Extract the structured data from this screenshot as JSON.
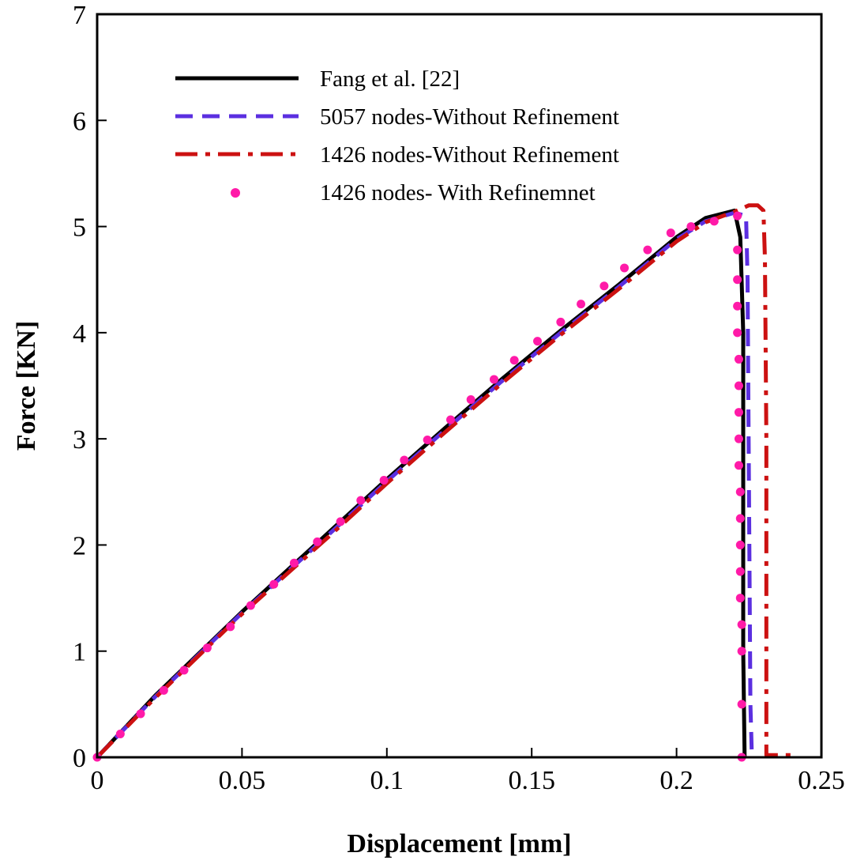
{
  "chart_data": {
    "type": "line",
    "title": "",
    "xlabel": "Displacement [mm]",
    "ylabel": "Force [KN]",
    "xlim": [
      0,
      0.25
    ],
    "ylim": [
      0,
      7
    ],
    "xticks": [
      0,
      0.05,
      0.1,
      0.15,
      0.2,
      0.25
    ],
    "xtick_labels": [
      "0",
      "0.05",
      "0.1",
      "0.15",
      "0.2",
      "0.25"
    ],
    "yticks": [
      0,
      1,
      2,
      3,
      4,
      5,
      6,
      7
    ],
    "ytick_labels": [
      "0",
      "1",
      "2",
      "3",
      "4",
      "5",
      "6",
      "7"
    ],
    "grid": false,
    "legend_position": "top-left",
    "series": [
      {
        "name": "Fang et al. [22]",
        "style": "solid",
        "color": "#000000",
        "x": [
          0,
          0.02,
          0.05,
          0.08,
          0.1,
          0.12,
          0.14,
          0.16,
          0.18,
          0.2,
          0.21,
          0.22,
          0.222,
          0.223,
          0.223,
          0.2235
        ],
        "y": [
          0,
          0.58,
          1.37,
          2.12,
          2.62,
          3.1,
          3.57,
          4.02,
          4.45,
          4.9,
          5.08,
          5.15,
          4.9,
          4.0,
          1.0,
          0
        ]
      },
      {
        "name": "5057 nodes-Without Refinement",
        "style": "dashed",
        "color": "#5b2fe0",
        "x": [
          0,
          0.02,
          0.05,
          0.08,
          0.1,
          0.12,
          0.14,
          0.16,
          0.18,
          0.2,
          0.21,
          0.22,
          0.224,
          0.2245,
          0.225,
          0.2255,
          0.226
        ],
        "y": [
          0,
          0.57,
          1.36,
          2.1,
          2.6,
          3.08,
          3.55,
          4.0,
          4.43,
          4.88,
          5.05,
          5.13,
          5.1,
          4.5,
          2.5,
          0.5,
          0
        ]
      },
      {
        "name": "1426 nodes-Without Refinement",
        "style": "dashdot",
        "color": "#cc1111",
        "x": [
          0,
          0.02,
          0.05,
          0.08,
          0.1,
          0.12,
          0.14,
          0.16,
          0.18,
          0.2,
          0.21,
          0.22,
          0.225,
          0.228,
          0.23,
          0.2305,
          0.231,
          0.231,
          0.232,
          0.24
        ],
        "y": [
          0,
          0.56,
          1.35,
          2.08,
          2.58,
          3.06,
          3.53,
          3.98,
          4.41,
          4.86,
          5.04,
          5.14,
          5.2,
          5.2,
          5.15,
          4.7,
          3.0,
          0.02,
          0.02,
          0.02
        ]
      },
      {
        "name": "1426 nodes- With Refinemnet",
        "style": "dots",
        "color": "#ff1aa8",
        "x": [
          0,
          0.008,
          0.015,
          0.023,
          0.03,
          0.038,
          0.046,
          0.053,
          0.061,
          0.068,
          0.076,
          0.084,
          0.091,
          0.099,
          0.106,
          0.114,
          0.122,
          0.129,
          0.137,
          0.144,
          0.152,
          0.16,
          0.167,
          0.175,
          0.182,
          0.19,
          0.198,
          0.205,
          0.213,
          0.221,
          0.221,
          0.221,
          0.221,
          0.221,
          0.2215,
          0.2215,
          0.2215,
          0.2215,
          0.2215,
          0.222,
          0.222,
          0.222,
          0.222,
          0.222,
          0.2225,
          0.2225,
          0.2225,
          0.2225
        ],
        "y": [
          0,
          0.22,
          0.41,
          0.63,
          0.82,
          1.03,
          1.23,
          1.43,
          1.63,
          1.83,
          2.03,
          2.22,
          2.42,
          2.61,
          2.8,
          2.99,
          3.18,
          3.37,
          3.56,
          3.74,
          3.92,
          4.1,
          4.27,
          4.44,
          4.61,
          4.78,
          4.94,
          5.0,
          5.05,
          5.1,
          4.78,
          4.5,
          4.25,
          4.0,
          3.75,
          3.5,
          3.25,
          3.0,
          2.75,
          2.5,
          2.25,
          2.0,
          1.75,
          1.5,
          1.25,
          1.0,
          0.5,
          0
        ]
      }
    ]
  }
}
